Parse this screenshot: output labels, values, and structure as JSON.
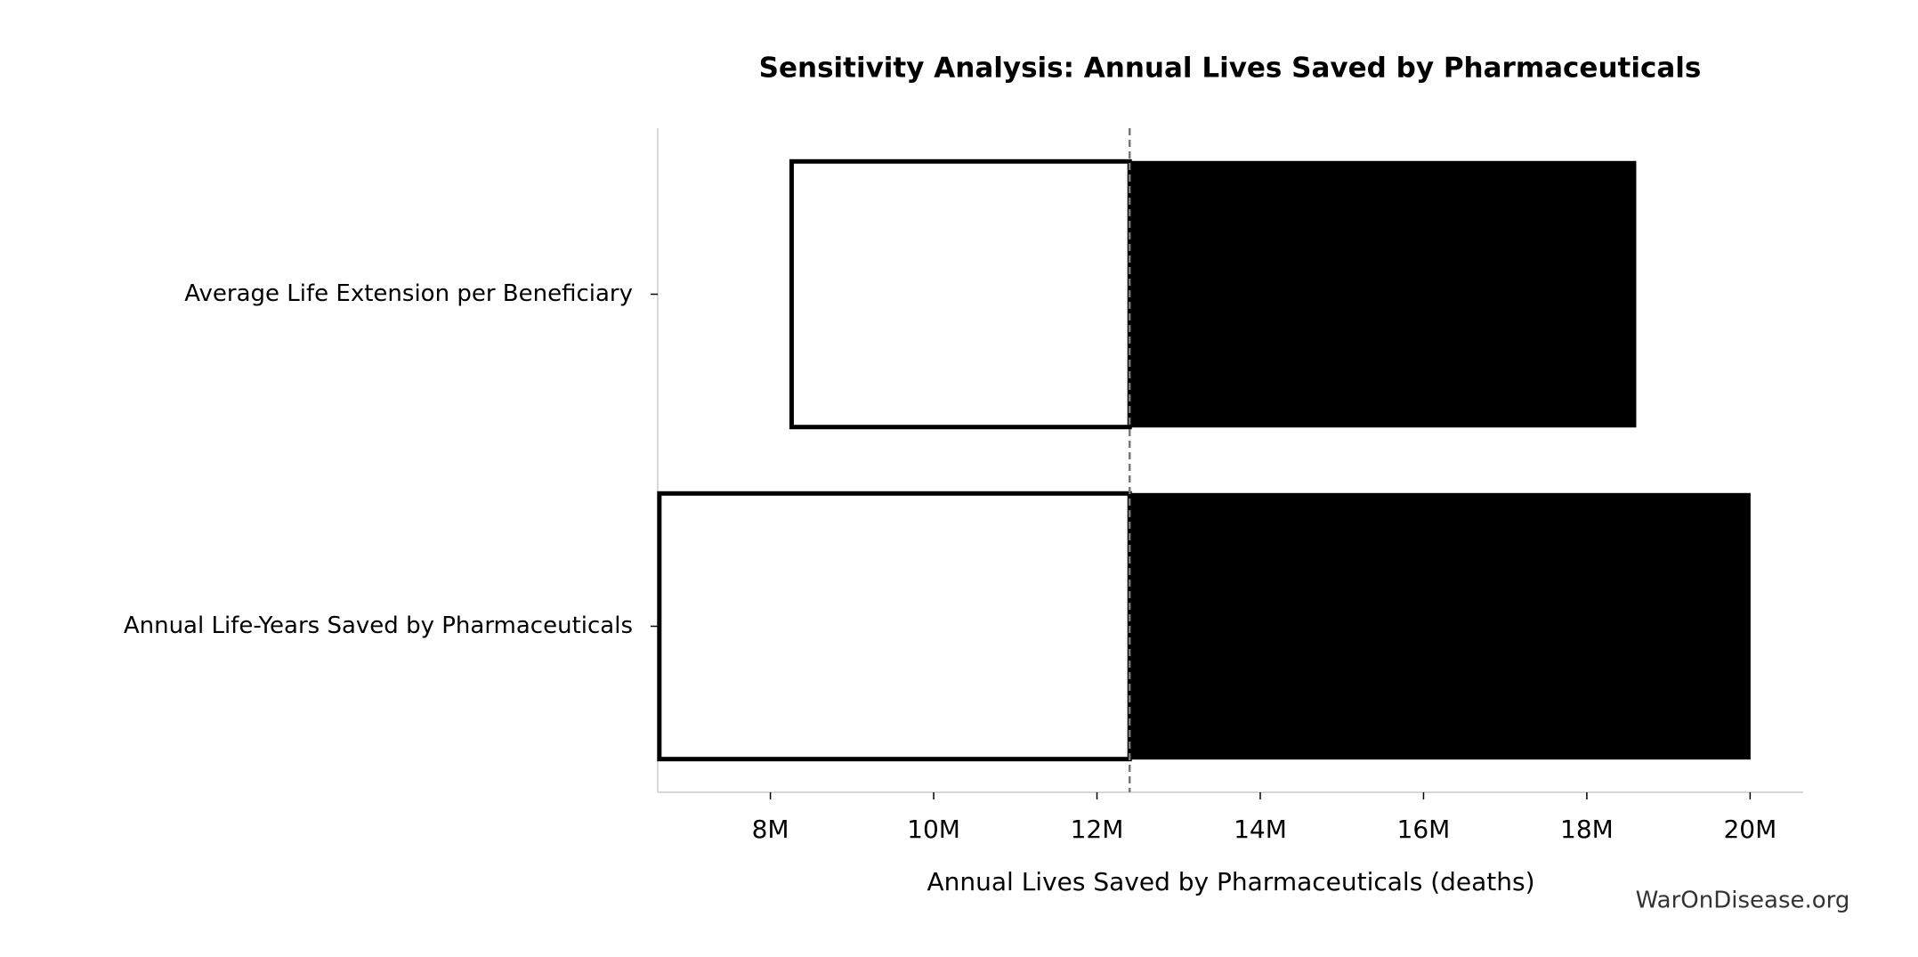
{
  "chart_data": {
    "type": "tornado",
    "title": "Sensitivity Analysis: Annual Lives Saved by Pharmaceuticals",
    "xlabel": "Annual Lives Saved by Pharmaceuticals (deaths)",
    "watermark": "WarOnDisease.org",
    "categories": [
      "Average Life Extension per Beneficiary",
      "Annual Life-Years Saved by Pharmaceuticals"
    ],
    "baseline": 12400000,
    "series": [
      {
        "color": "#ffffff",
        "values": [
          8260000,
          6640000
        ]
      },
      {
        "color": "#000000",
        "values": [
          18600000,
          20000000
        ]
      }
    ],
    "xlim": [
      6620000,
      20650000
    ],
    "xticks": [
      {
        "value": 8000000,
        "label": "8M"
      },
      {
        "value": 10000000,
        "label": "10M"
      },
      {
        "value": 12000000,
        "label": "12M"
      },
      {
        "value": 14000000,
        "label": "14M"
      },
      {
        "value": 16000000,
        "label": "16M"
      },
      {
        "value": 18000000,
        "label": "18M"
      },
      {
        "value": 20000000,
        "label": "20M"
      }
    ]
  }
}
